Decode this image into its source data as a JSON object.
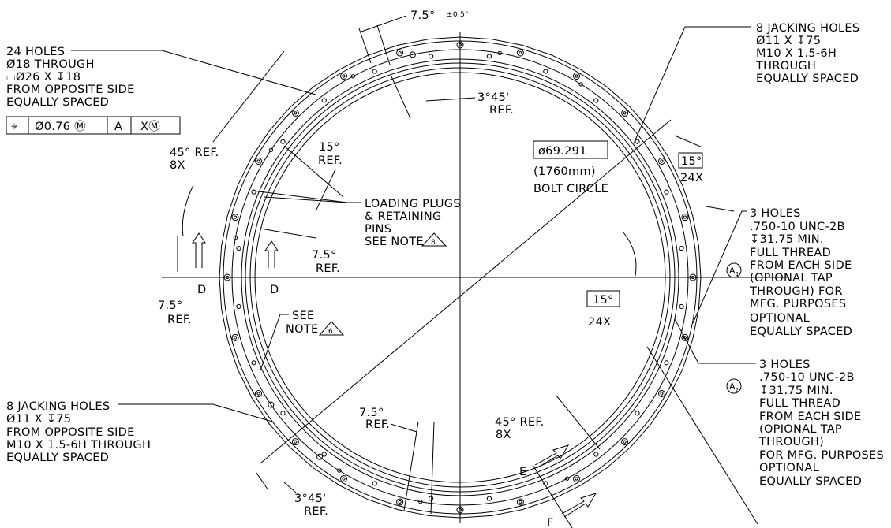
{
  "drawing": {
    "top_angle": {
      "value": "7.5°",
      "tolerance": "±0.5°"
    },
    "counterbore_note": {
      "lines": [
        "24 HOLES",
        "Ø18 THROUGH",
        "⌴Ø26 X ↧18",
        "FROM OPPOSITE SIDE",
        "EQUALLY SPACED"
      ]
    },
    "feature_control_frame": [
      "⌖",
      "Ø0.76 Ⓜ",
      "A",
      "XⓂ"
    ],
    "jacking_note_top": {
      "lines": [
        "8 JACKING HOLES",
        "Ø11 X ↧75",
        "M10 X 1.5-6H",
        "THROUGH",
        "EQUALLY SPACED"
      ]
    },
    "angle_3_45_top": {
      "lines": [
        "3°45'",
        "REF."
      ]
    },
    "angle_45_top": {
      "lines": [
        "45° REF.",
        "8X"
      ]
    },
    "angle_15_top": {
      "lines": [
        "15°",
        "REF."
      ]
    },
    "loading_plugs_note": {
      "lines": [
        "LOADING PLUGS",
        "& RETAINING",
        "PINS",
        "SEE NOTE"
      ],
      "note_ref": "8"
    },
    "bolt_circle": {
      "diameter": "ø69.291",
      "metric": "(1760mm)",
      "label": "BOLT CIRCLE"
    },
    "angle_15_box_top": {
      "value": "15°",
      "count": "24X"
    },
    "tap_note_a1": {
      "datum": "A",
      "index": "1",
      "lines": [
        "3 HOLES",
        ".750-10 UNC-2B",
        "↧31.75 MIN.",
        "FULL THREAD",
        "FROM EACH SIDE",
        "(OPIONAL TAP",
        "THROUGH) FOR",
        "MFG. PURPOSES",
        "OPTIONAL",
        "EQUALLY SPACED"
      ]
    },
    "angle_7_5_mid": {
      "lines": [
        "7.5°",
        "REF."
      ]
    },
    "section_d": [
      "D",
      "D"
    ],
    "angle_7_5_left": {
      "lines": [
        "7.5°",
        "REF."
      ]
    },
    "see_note_6": {
      "lines": [
        "SEE",
        "NOTE"
      ],
      "note_ref": "6"
    },
    "angle_15_box_mid": {
      "value": "15°",
      "count": "24X"
    },
    "tap_note_a2": {
      "datum": "A",
      "index": "2",
      "lines": [
        "3 HOLES",
        ".750-10 UNC-2B",
        "↧31.75 MIN.",
        "FULL THREAD",
        "FROM EACH SIDE",
        "(OPIONAL TAP",
        "THROUGH)",
        "FOR MFG. PURPOSES",
        "OPTIONAL",
        "EQUALLY SPACED"
      ]
    },
    "jacking_note_bottom": {
      "lines": [
        "8 JACKING HOLES",
        "Ø11 X ↧75",
        "FROM OPPOSITE SIDE",
        "M10 X 1.5-6H THROUGH",
        "EQUALLY SPACED"
      ]
    },
    "angle_7_5_bottom": {
      "lines": [
        "7.5°",
        "REF."
      ]
    },
    "angle_45_bottom": {
      "lines": [
        "45° REF.",
        "8X"
      ]
    },
    "angle_3_45_bottom": {
      "lines": [
        "3°45'",
        "REF."
      ]
    },
    "section_e": "E",
    "section_f": "F"
  }
}
